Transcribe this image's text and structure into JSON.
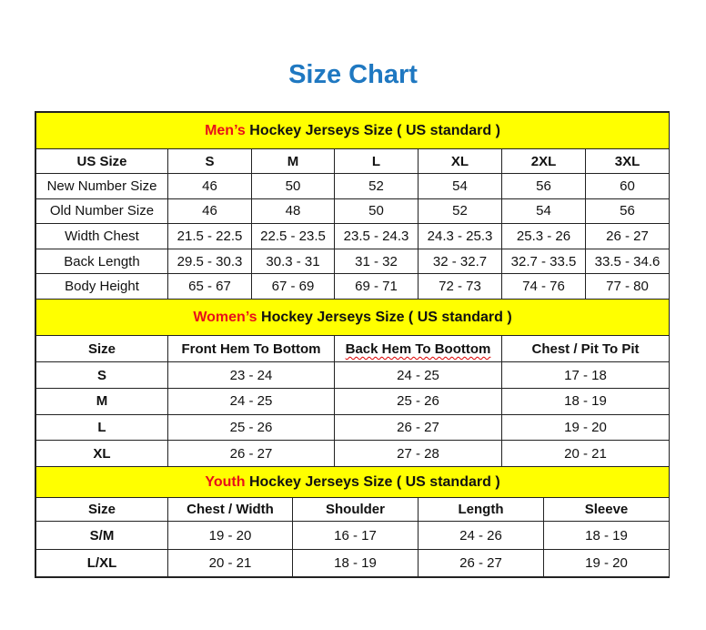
{
  "title": "Size Chart",
  "colors": {
    "title": "#1f78c1",
    "section_bg": "#ffff00",
    "highlight": "#e8101a"
  },
  "men": {
    "prefix": "Men’s",
    "heading": " Hockey Jerseys Size ( US standard )",
    "header": [
      "US Size",
      "S",
      "M",
      "L",
      "XL",
      "2XL",
      "3XL"
    ],
    "rows": [
      [
        "New Number Size",
        "46",
        "50",
        "52",
        "54",
        "56",
        "60"
      ],
      [
        "Old Number Size",
        "46",
        "48",
        "50",
        "52",
        "54",
        "56"
      ],
      [
        "Width Chest",
        "21.5 - 22.5",
        "22.5 - 23.5",
        "23.5 - 24.3",
        "24.3 - 25.3",
        "25.3 - 26",
        "26 - 27"
      ],
      [
        "Back Length",
        "29.5 - 30.3",
        "30.3 - 31",
        "31 - 32",
        "32 - 32.7",
        "32.7 - 33.5",
        "33.5 - 34.6"
      ],
      [
        "Body Height",
        "65 - 67",
        "67 - 69",
        "69 - 71",
        "72 - 73",
        "74 - 76",
        "77 - 80"
      ]
    ]
  },
  "women": {
    "prefix": "Women’s",
    "heading": " Hockey Jerseys Size ( US standard )",
    "header": [
      "Size",
      "Front Hem To Bottom",
      "Back Hem To Boottom",
      "Chest / Pit To Pit"
    ],
    "rows": [
      [
        "S",
        "23 - 24",
        "24 - 25",
        "17 - 18"
      ],
      [
        "M",
        "24 - 25",
        "25 - 26",
        "18 - 19"
      ],
      [
        "L",
        "25 - 26",
        "26 - 27",
        "19 - 20"
      ],
      [
        "XL",
        "26 - 27",
        "27 - 28",
        "20 - 21"
      ]
    ]
  },
  "youth": {
    "prefix": "Youth",
    "heading": " Hockey Jerseys Size ( US standard )",
    "header": [
      "Size",
      "Chest / Width",
      "Shoulder",
      "Length",
      "Sleeve"
    ],
    "rows": [
      [
        "S/M",
        "19 - 20",
        "16 - 17",
        "24 - 26",
        "18 - 19"
      ],
      [
        "L/XL",
        "20 - 21",
        "18 - 19",
        "26 - 27",
        "19 - 20"
      ]
    ]
  }
}
